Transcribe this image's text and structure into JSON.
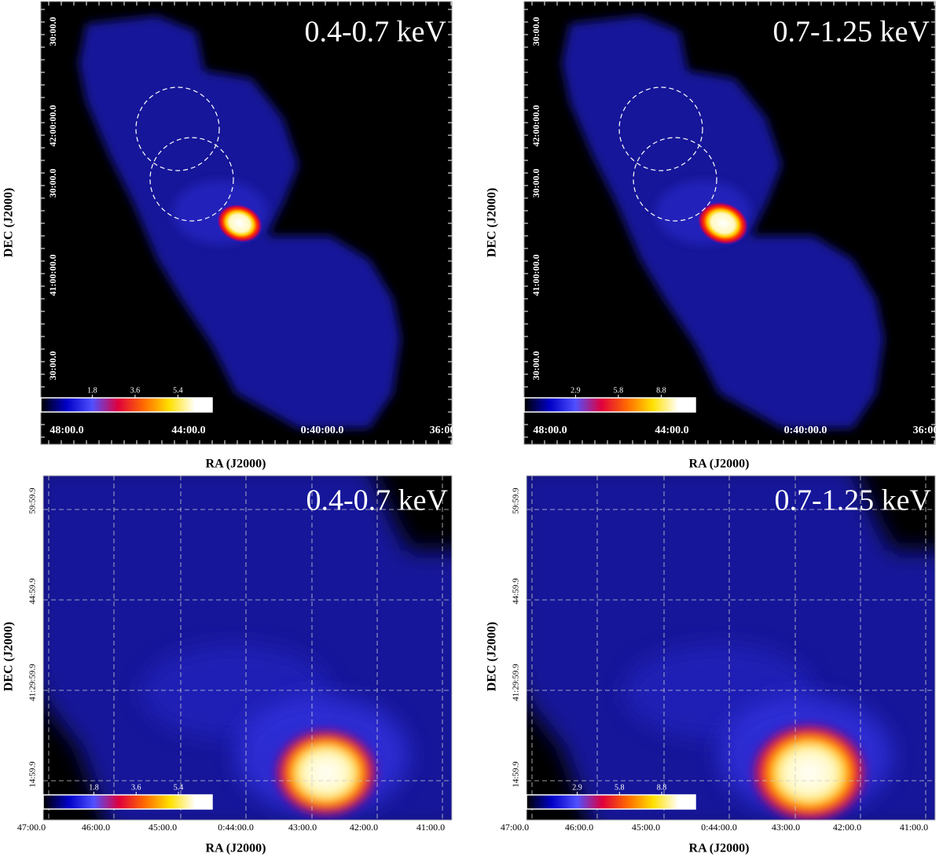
{
  "panels": [
    {
      "energy": "0.4-0.7 keV",
      "y_tick_labels": [
        "30:00.0",
        "42:00:00.0",
        "30:00.0",
        "41:00:00.0",
        "30:00.0"
      ],
      "x_tick_labels": [
        "48:00.0",
        "44:00.0",
        "0:40:00.0",
        "36:00"
      ],
      "x_label": "RA (J2000)",
      "y_label": "DEC (J2000)",
      "colorbar_ticks": [
        "1.8",
        "3.6",
        "5.4"
      ]
    },
    {
      "energy": "0.7-1.25 keV",
      "y_tick_labels": [
        "30:00.0",
        "42:00:00.0",
        "30:00.0",
        "41:00:00.0",
        "30:00.0"
      ],
      "x_tick_labels": [
        "48:00.0",
        "44:00.0",
        "0:40:00.0",
        "36:00"
      ],
      "x_label": "RA (J2000)",
      "y_label": "DEC (J2000)",
      "colorbar_ticks": [
        "2.9",
        "5.8",
        "8.8"
      ]
    },
    {
      "energy": "0.4-0.7 keV",
      "y_tick_labels": [
        "59:59.9",
        "44:59.9",
        "41:29:59.9",
        "14:59.9"
      ],
      "x_tick_labels": [
        "47:00.0",
        "46:00.0",
        "45:00.0",
        "0:44:00.0",
        "43:00.0",
        "42:00.0",
        "41:00.0"
      ],
      "x_label": "RA (J2000)",
      "y_label": "DEC (J2000)",
      "colorbar_ticks": [
        "1.8",
        "3.6",
        "5.4"
      ]
    },
    {
      "energy": "0.7-1.25 keV",
      "y_tick_labels": [
        "59:59.9",
        "44:59.9",
        "41:29:59.9",
        "14:59.9"
      ],
      "x_tick_labels": [
        "47:00.0",
        "46:00.0",
        "45:00.0",
        "0:44:00.0",
        "43:00.0",
        "42:00.0",
        "41:00.0"
      ],
      "x_label": "RA (J2000)",
      "y_label": "DEC (J2000)",
      "colorbar_ticks": [
        "2.9",
        "5.8",
        "8.8"
      ]
    }
  ]
}
